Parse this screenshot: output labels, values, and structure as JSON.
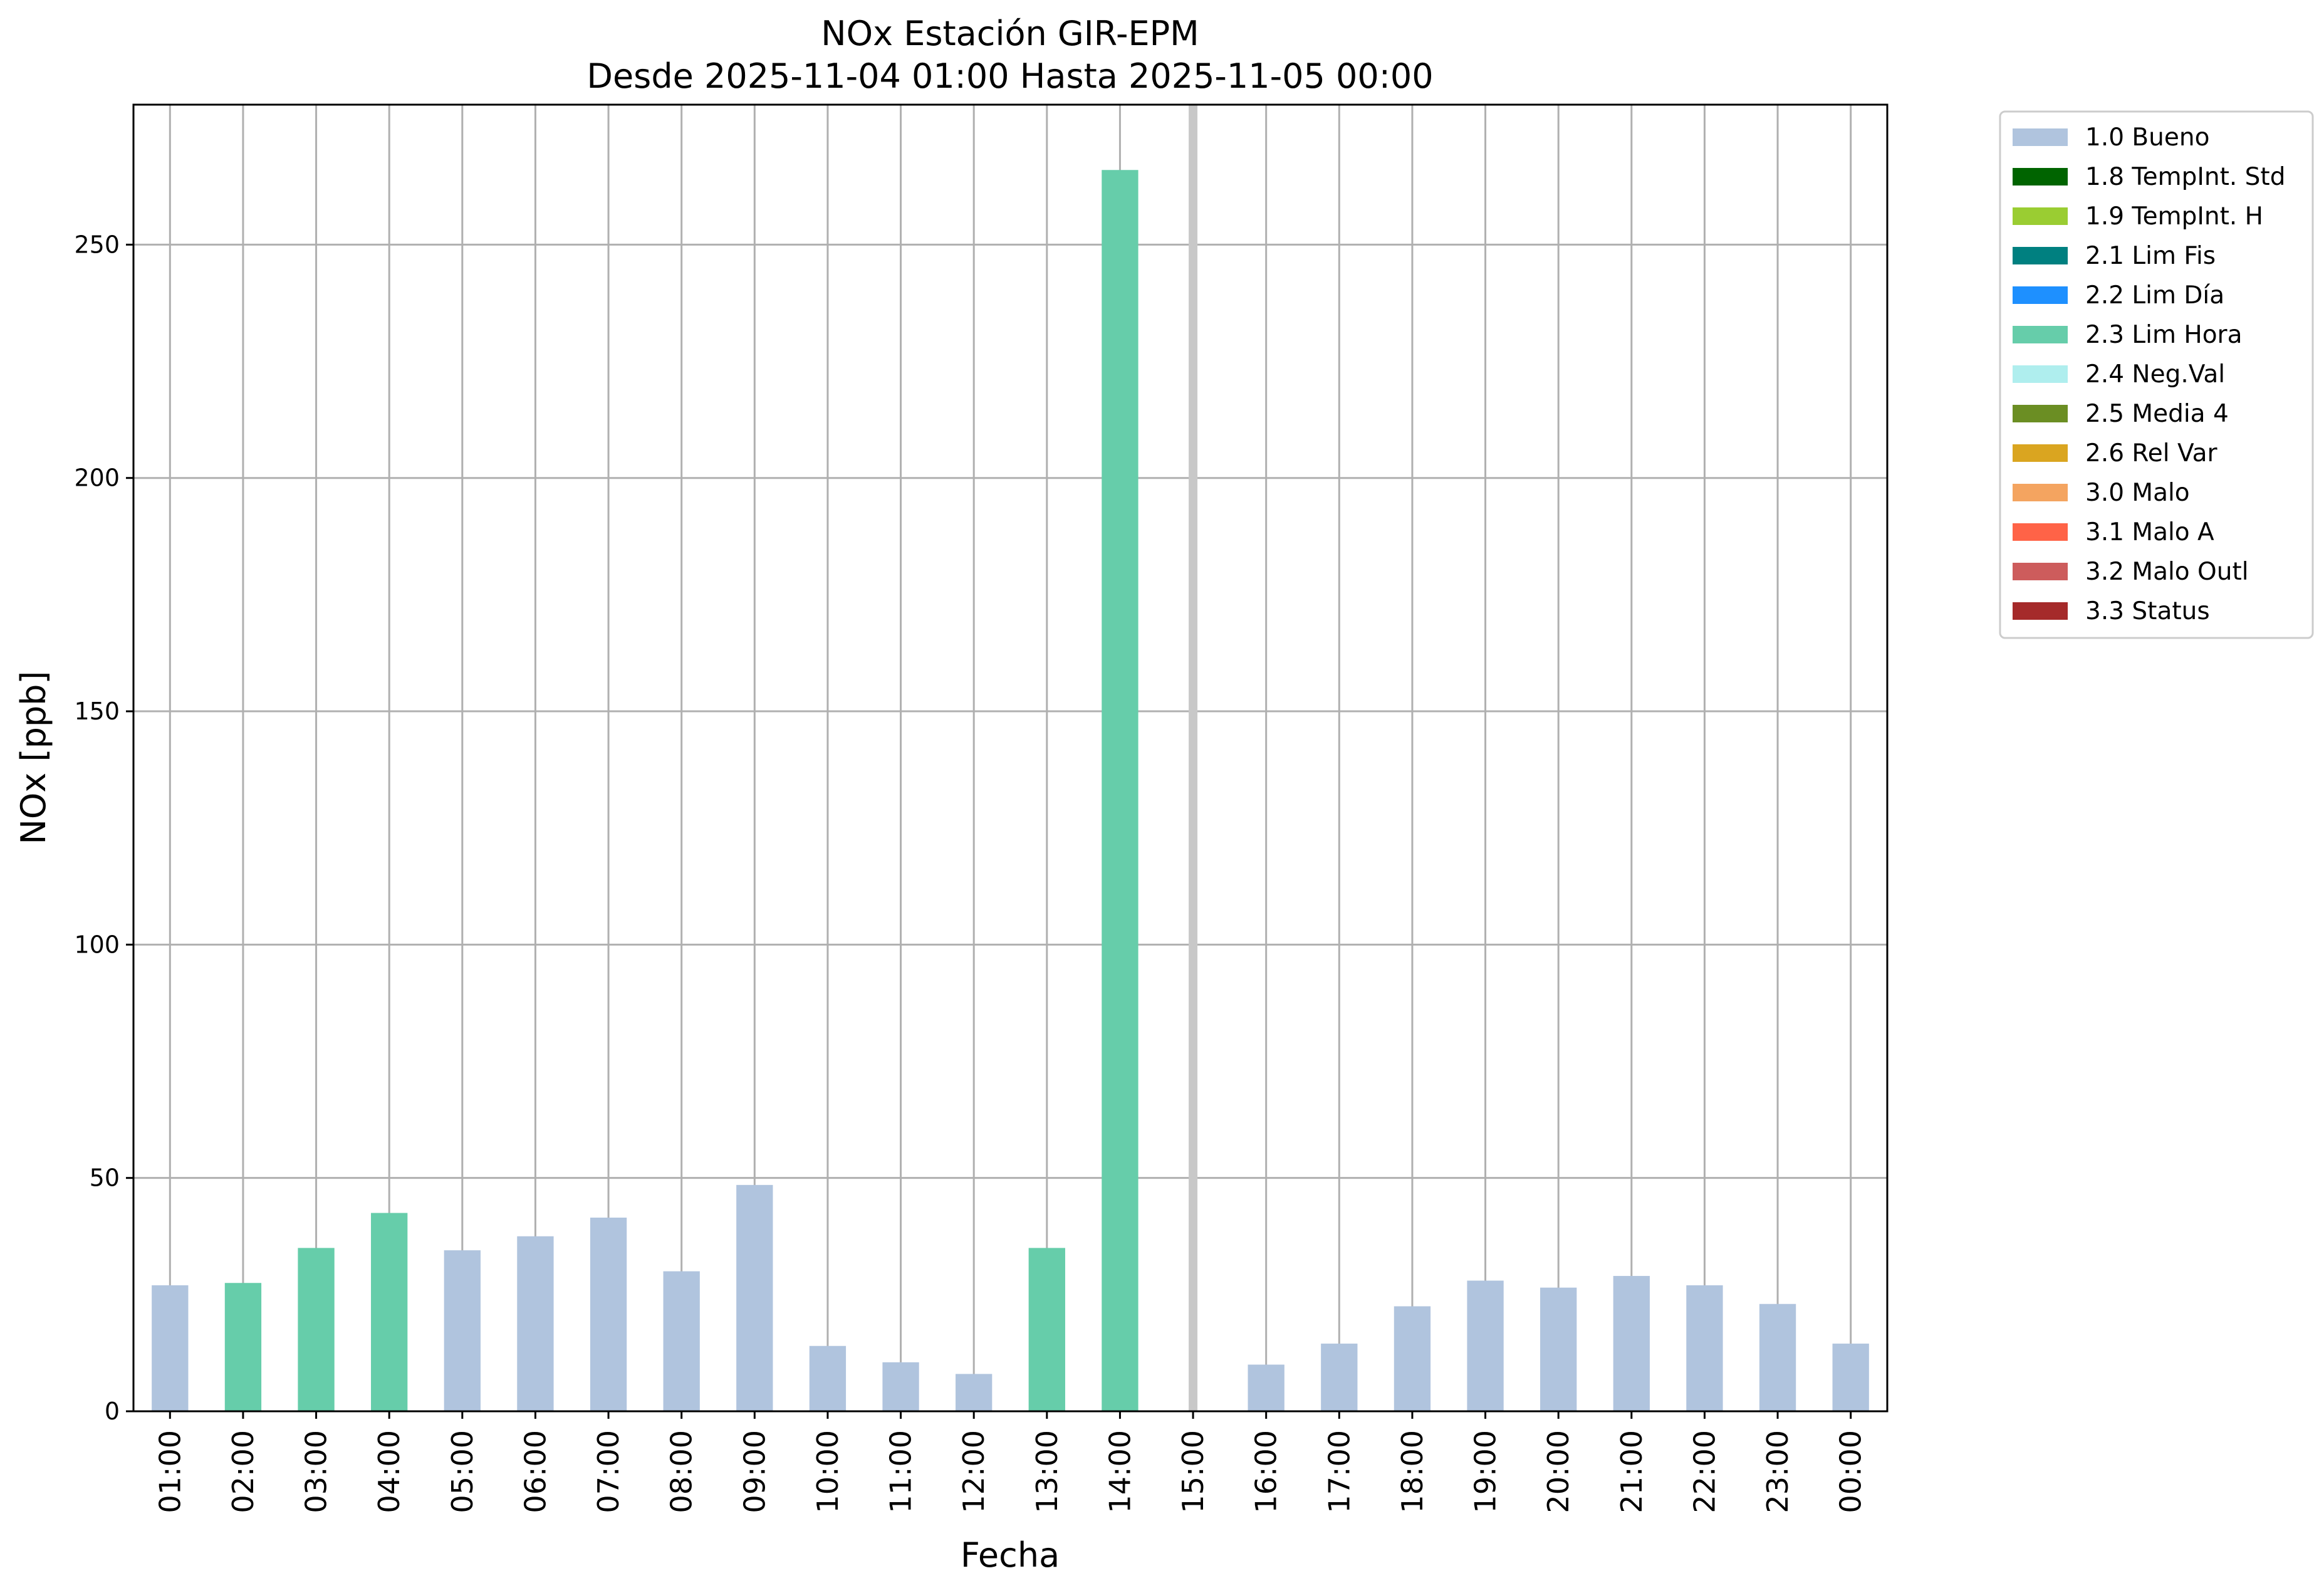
{
  "chart_data": {
    "type": "bar",
    "title": "NOx Estación GIR-EPM",
    "subtitle": "Desde 2025-11-04 01:00 Hasta 2025-11-05 00:00",
    "xlabel": "Fecha",
    "ylabel": "NOx [ppb]",
    "ylim": [
      0,
      280
    ],
    "yticks": [
      0,
      50,
      100,
      150,
      200,
      250
    ],
    "grid": true,
    "legend_position": "outside-top-right",
    "categories": [
      "01:00",
      "02:00",
      "03:00",
      "04:00",
      "05:00",
      "06:00",
      "07:00",
      "08:00",
      "09:00",
      "10:00",
      "11:00",
      "12:00",
      "13:00",
      "14:00",
      "15:00",
      "16:00",
      "17:00",
      "18:00",
      "19:00",
      "20:00",
      "21:00",
      "22:00",
      "23:00",
      "00:00"
    ],
    "values": [
      27,
      27.5,
      35,
      42.5,
      34.5,
      37.5,
      41.5,
      30,
      48.5,
      14,
      10.5,
      8,
      35,
      266,
      null,
      10,
      14.5,
      22.5,
      28,
      26.5,
      29,
      27,
      23,
      14.5
    ],
    "flags": [
      "1.0 Bueno",
      "2.3 Lim Hora",
      "2.3 Lim Hora",
      "2.3 Lim Hora",
      "1.0 Bueno",
      "1.0 Bueno",
      "1.0 Bueno",
      "1.0 Bueno",
      "1.0 Bueno",
      "1.0 Bueno",
      "1.0 Bueno",
      "1.0 Bueno",
      "2.3 Lim Hora",
      "2.3 Lim Hora",
      null,
      "1.0 Bueno",
      "1.0 Bueno",
      "1.0 Bueno",
      "1.0 Bueno",
      "1.0 Bueno",
      "1.0 Bueno",
      "1.0 Bueno",
      "1.0 Bueno",
      "1.0 Bueno"
    ],
    "marker_category": "15:00",
    "marker_color": "#c8c8c8",
    "legend": [
      {
        "label": "1.0 Bueno",
        "color": "#b0c4de"
      },
      {
        "label": "1.8 TempInt. Std",
        "color": "#006400"
      },
      {
        "label": "1.9 TempInt. H",
        "color": "#9acd32"
      },
      {
        "label": "2.1 Lim Fis",
        "color": "#008080"
      },
      {
        "label": "2.2 Lim Día",
        "color": "#1e90ff"
      },
      {
        "label": "2.3 Lim Hora",
        "color": "#66cdaa"
      },
      {
        "label": "2.4 Neg.Val",
        "color": "#afeeee"
      },
      {
        "label": "2.5 Media 4",
        "color": "#6b8e23"
      },
      {
        "label": "2.6 Rel Var",
        "color": "#daa520"
      },
      {
        "label": "3.0 Malo",
        "color": "#f4a460"
      },
      {
        "label": "3.1 Malo A",
        "color": "#ff6347"
      },
      {
        "label": "3.2 Malo Outl",
        "color": "#cd5c5c"
      },
      {
        "label": "3.3 Status",
        "color": "#a52a2a"
      }
    ]
  }
}
